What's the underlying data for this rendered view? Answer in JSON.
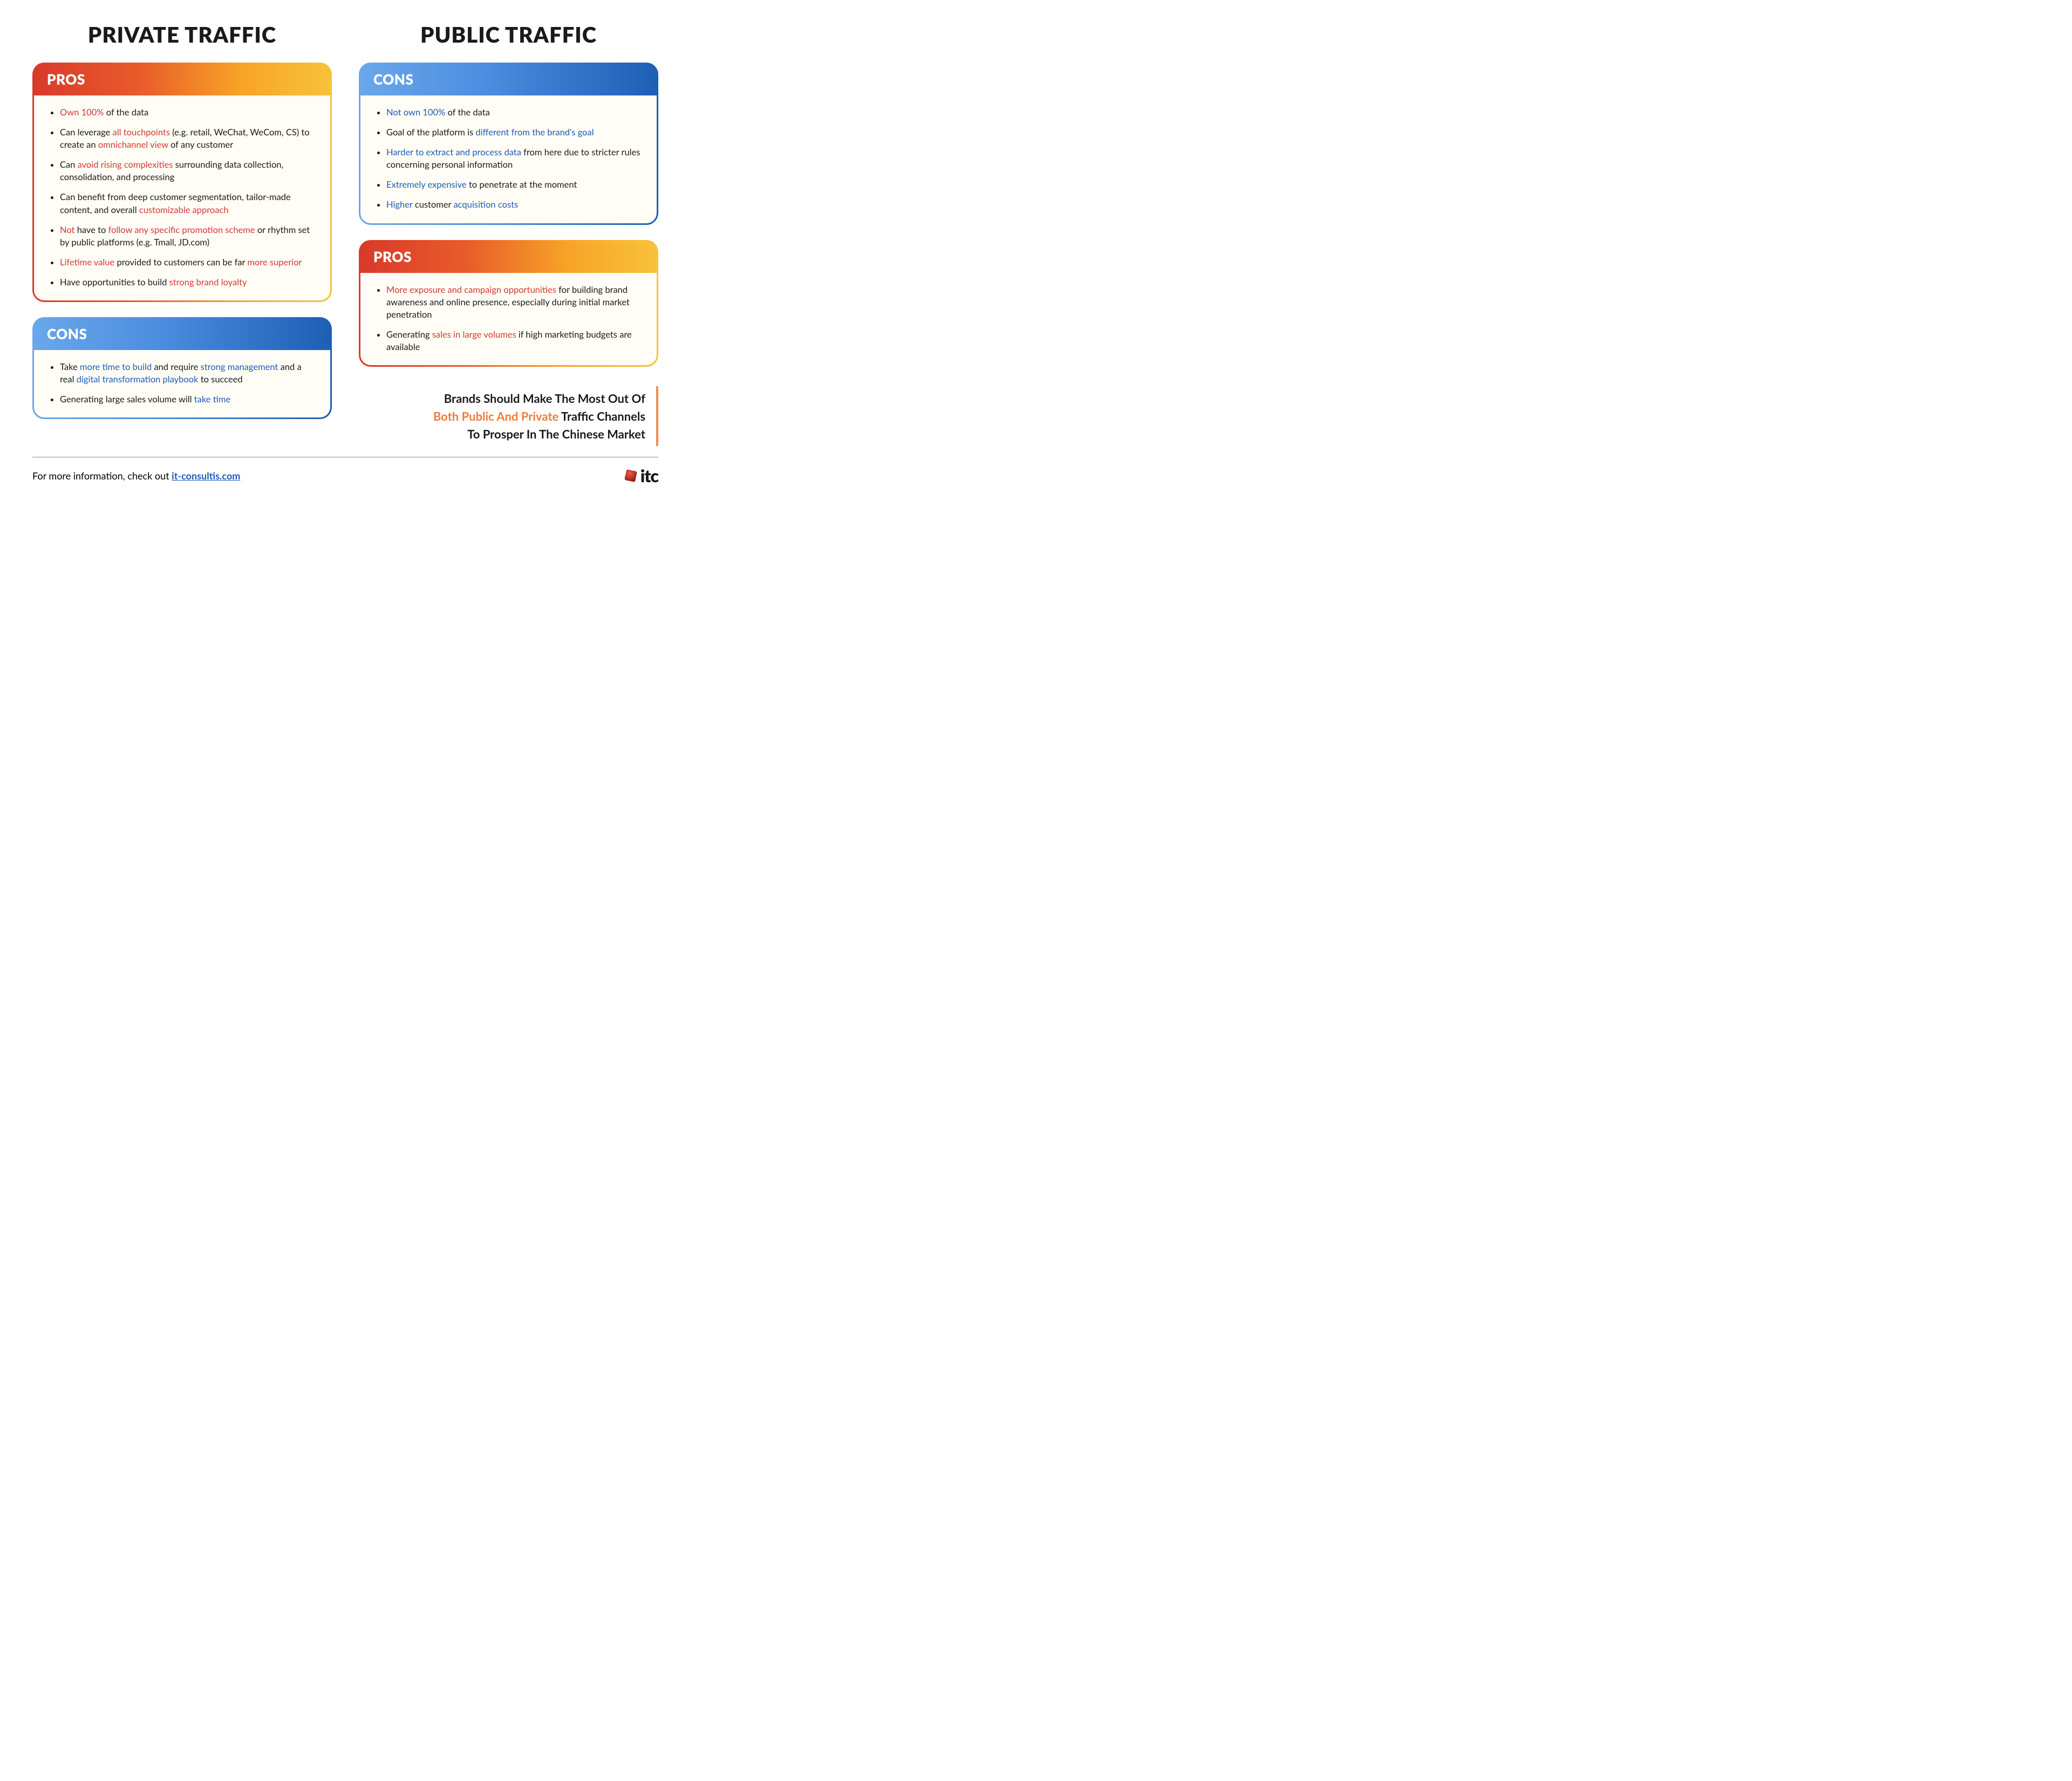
{
  "columns": {
    "left": {
      "title": "PRIVATE TRAFFIC"
    },
    "right": {
      "title": "PUBLIC TRAFFIC"
    }
  },
  "cards": {
    "private_pros": {
      "header": "PROS",
      "gradient": "warm",
      "highlight_class": "hl-red",
      "items": [
        [
          [
            "Own 100%",
            true
          ],
          [
            " of the data",
            false
          ]
        ],
        [
          [
            "Can leverage ",
            false
          ],
          [
            "all touchpoints",
            true
          ],
          [
            " (e.g. retail, WeChat, WeCom, CS) to create an ",
            false
          ],
          [
            "omnichannel view",
            true
          ],
          [
            " of any customer",
            false
          ]
        ],
        [
          [
            "Can ",
            false
          ],
          [
            "avoid rising complexities",
            true
          ],
          [
            " surrounding data collection, consolidation, and processing",
            false
          ]
        ],
        [
          [
            "Can benefit from deep customer segmentation, tailor-made content, and overall ",
            false
          ],
          [
            "customizable approach",
            true
          ]
        ],
        [
          [
            "Not",
            true
          ],
          [
            " have to ",
            false
          ],
          [
            "follow any specific promotion scheme",
            true
          ],
          [
            " or rhythm set by public platforms (e.g. Tmall, JD.com)",
            false
          ]
        ],
        [
          [
            "Lifetime value",
            true
          ],
          [
            " provided to customers can be far ",
            false
          ],
          [
            "more superior",
            true
          ]
        ],
        [
          [
            "Have opportunities to build ",
            false
          ],
          [
            "strong brand loyalty",
            true
          ]
        ]
      ]
    },
    "private_cons": {
      "header": "CONS",
      "gradient": "cool",
      "highlight_class": "hl-blue",
      "items": [
        [
          [
            "Take ",
            false
          ],
          [
            "more time to build",
            true
          ],
          [
            " and require ",
            false
          ],
          [
            "strong management",
            true
          ],
          [
            " and a real ",
            false
          ],
          [
            "digital transformation playbook",
            true
          ],
          [
            " to succeed",
            false
          ]
        ],
        [
          [
            "Generating large sales volume will ",
            false
          ],
          [
            "take time",
            true
          ]
        ]
      ]
    },
    "public_cons": {
      "header": "CONS",
      "gradient": "cool",
      "highlight_class": "hl-blue",
      "items": [
        [
          [
            "Not own 100%",
            true
          ],
          [
            " of the data",
            false
          ]
        ],
        [
          [
            "Goal of the platform is ",
            false
          ],
          [
            "different from the brand's goal",
            true
          ]
        ],
        [
          [
            "Harder to extract and process data",
            true
          ],
          [
            " from here due to stricter rules concerning personal information",
            false
          ]
        ],
        [
          [
            "Extremely expensive",
            true
          ],
          [
            " to penetrate at the moment",
            false
          ]
        ],
        [
          [
            "Higher",
            true
          ],
          [
            " customer ",
            false
          ],
          [
            "acquisition costs",
            true
          ]
        ]
      ]
    },
    "public_pros": {
      "header": "PROS",
      "gradient": "warm",
      "highlight_class": "hl-red",
      "items": [
        [
          [
            "More exposure and campaign opportunities",
            true
          ],
          [
            " for building brand awareness and online presence, especially during initial market penetration",
            false
          ]
        ],
        [
          [
            "Generating ",
            false
          ],
          [
            "sales in large volumes",
            true
          ],
          [
            " if high marketing budgets are available",
            false
          ]
        ]
      ]
    }
  },
  "callout": {
    "line1": "Brands Should Make The Most Out Of",
    "accent": "Both Public And Private",
    "line2_rest": " Traffic Channels",
    "line3": "To Prosper In The Chinese Market"
  },
  "footer": {
    "lead": "For more information, check out ",
    "link_text": "it-consultis.com",
    "logo_text": "itc"
  },
  "style": {
    "colors": {
      "text": "#1a1a1a",
      "highlight_red": "#d43838",
      "highlight_blue": "#1e5bb8",
      "card_body_bg": "#fffdf5",
      "callout_border": "#f08c4a",
      "callout_accent": "#ef7b3a",
      "footer_rule": "#888888"
    },
    "gradients": {
      "warm": [
        "#d83a2b",
        "#e85a2a",
        "#f7a427",
        "#f8c23b"
      ],
      "cool": [
        "#6aa8ea",
        "#4d8fe0",
        "#1c5fb5"
      ]
    },
    "fontsize": {
      "column_title": 40,
      "card_header": 26,
      "bullet": 16.5,
      "callout": 22,
      "footer": 18,
      "logo": 32
    },
    "border_radius": 22
  }
}
